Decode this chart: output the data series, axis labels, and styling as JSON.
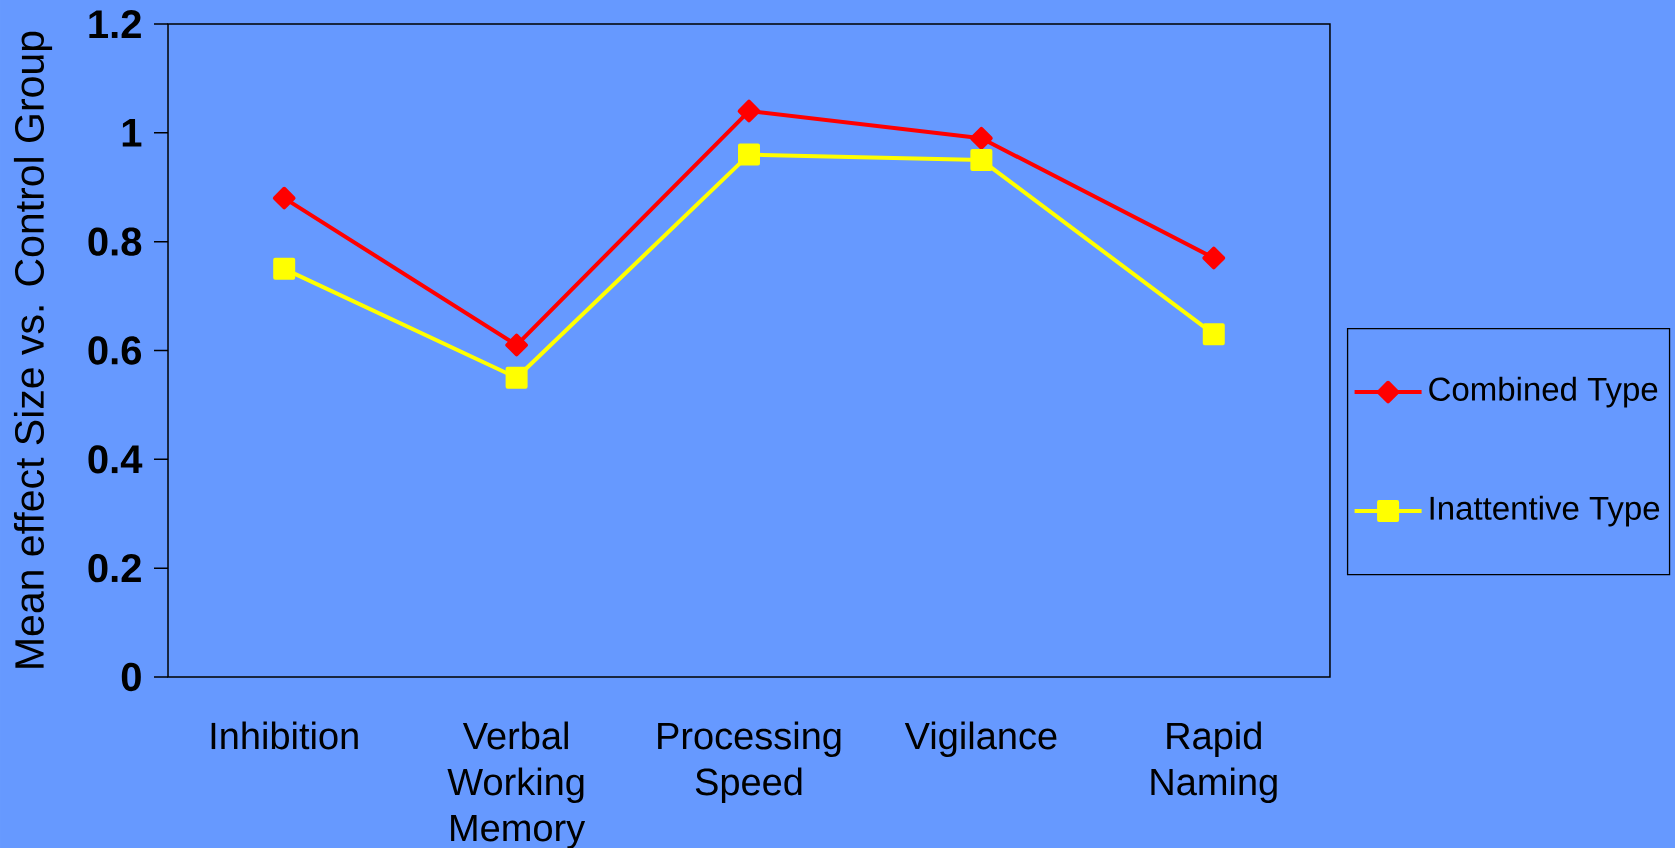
{
  "chart_data": {
    "type": "line",
    "ylabel": "Mean effect Size vs. Control Group",
    "categories": [
      "Inhibition",
      "Verbal Working Memory",
      "Processing Speed",
      "Vigilance",
      "Rapid Naming"
    ],
    "series": [
      {
        "name": "Combined Type",
        "color": "#ff0000",
        "marker": "diamond",
        "values": [
          0.88,
          0.61,
          1.04,
          0.99,
          0.77
        ]
      },
      {
        "name": "Inattentive Type",
        "color": "#ffff00",
        "marker": "square",
        "values": [
          0.75,
          0.55,
          0.96,
          0.95,
          0.63
        ]
      }
    ],
    "ylim": [
      0,
      1.2
    ],
    "yticks": [
      0,
      0.2,
      0.4,
      0.6,
      0.8,
      1,
      1.2
    ],
    "legend": "right",
    "line_style": "solid"
  }
}
